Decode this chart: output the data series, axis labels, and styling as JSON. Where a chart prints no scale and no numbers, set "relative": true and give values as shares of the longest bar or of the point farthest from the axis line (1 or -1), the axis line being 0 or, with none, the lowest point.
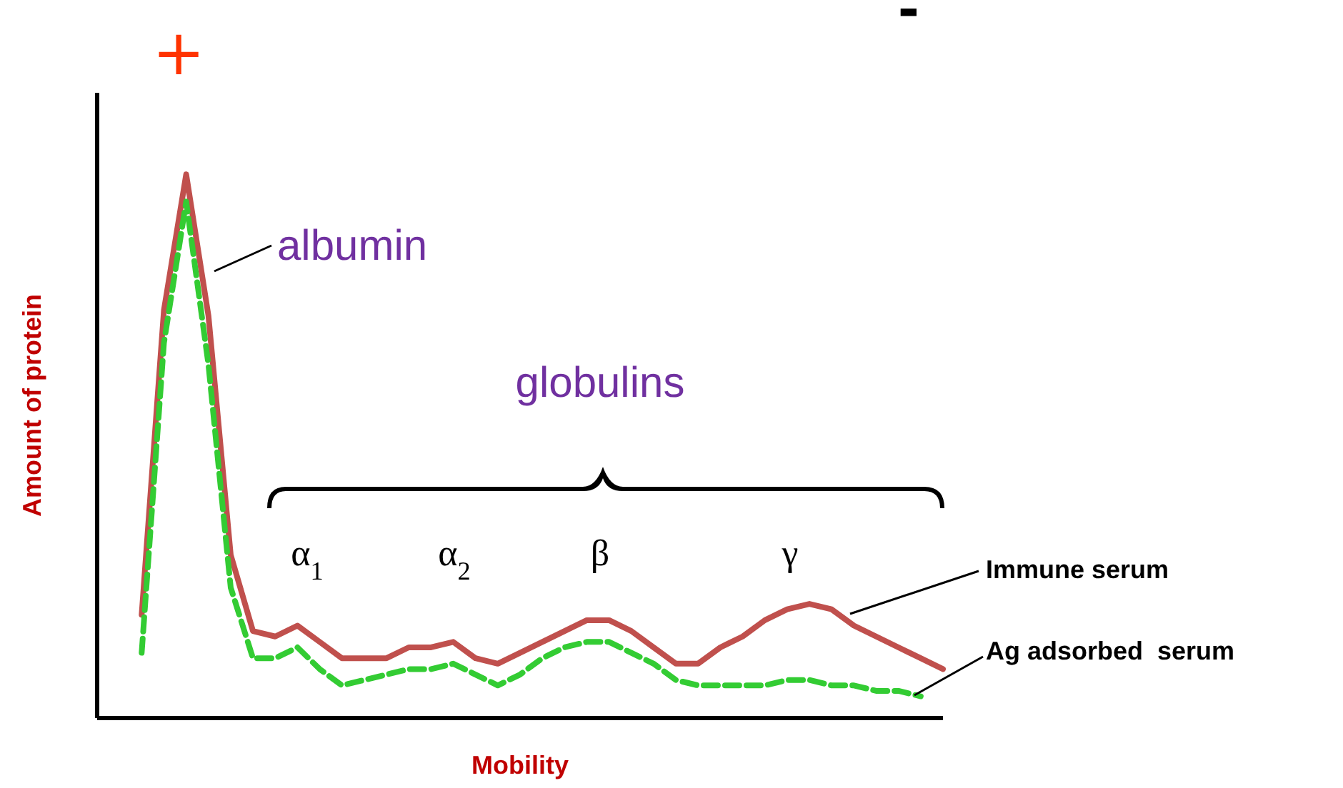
{
  "chart_data": {
    "type": "line",
    "relative": true,
    "xlabel": "Mobility",
    "ylabel": "Amount of protein",
    "annotations": [
      "+",
      "-",
      "albumin",
      "globulins",
      "α$_{1}$",
      "α$_{2}$",
      "β",
      "γ"
    ],
    "categories": [
      null,
      null,
      null,
      null,
      null,
      null,
      null,
      null,
      null,
      null,
      null,
      null,
      null,
      null,
      null,
      null,
      null,
      null,
      null,
      null,
      null,
      null,
      null,
      null,
      null,
      null,
      null,
      null,
      null,
      null,
      null,
      null,
      null,
      null,
      null,
      null,
      null,
      null,
      null
    ],
    "series": [
      {
        "name": "Immune serum",
        "color": "#c0504d",
        "line_style": "solid",
        "values": [
          null,
          null,
          0.19,
          0.75,
          1,
          0.74,
          0.3,
          0.16,
          0.15,
          0.17,
          0.14,
          0.11,
          0.11,
          0.11,
          0.13,
          0.13,
          0.14,
          0.11,
          0.1,
          0.12,
          0.14,
          0.16,
          0.18,
          0.18,
          0.16,
          0.13,
          0.1,
          0.1,
          0.13,
          0.15,
          0.18,
          0.2,
          0.21,
          0.2,
          0.17,
          0.15,
          0.13,
          0.11,
          0.09
        ]
      },
      {
        "name": "Ag adsorbed  serum",
        "color": "#33cc33",
        "line_style": "dashed",
        "values": [
          null,
          null,
          0.12,
          0.69,
          0.95,
          0.65,
          0.24,
          0.11,
          0.11,
          0.13,
          0.09,
          0.06,
          0.07,
          0.08,
          0.09,
          0.09,
          0.1,
          0.08,
          0.06,
          0.08,
          0.11,
          0.13,
          0.14,
          0.14,
          0.12,
          0.1,
          0.07,
          0.06,
          0.06,
          0.06,
          0.06,
          0.07,
          0.07,
          0.06,
          0.06,
          0.05,
          0.05,
          0.04,
          null
        ]
      }
    ]
  }
}
